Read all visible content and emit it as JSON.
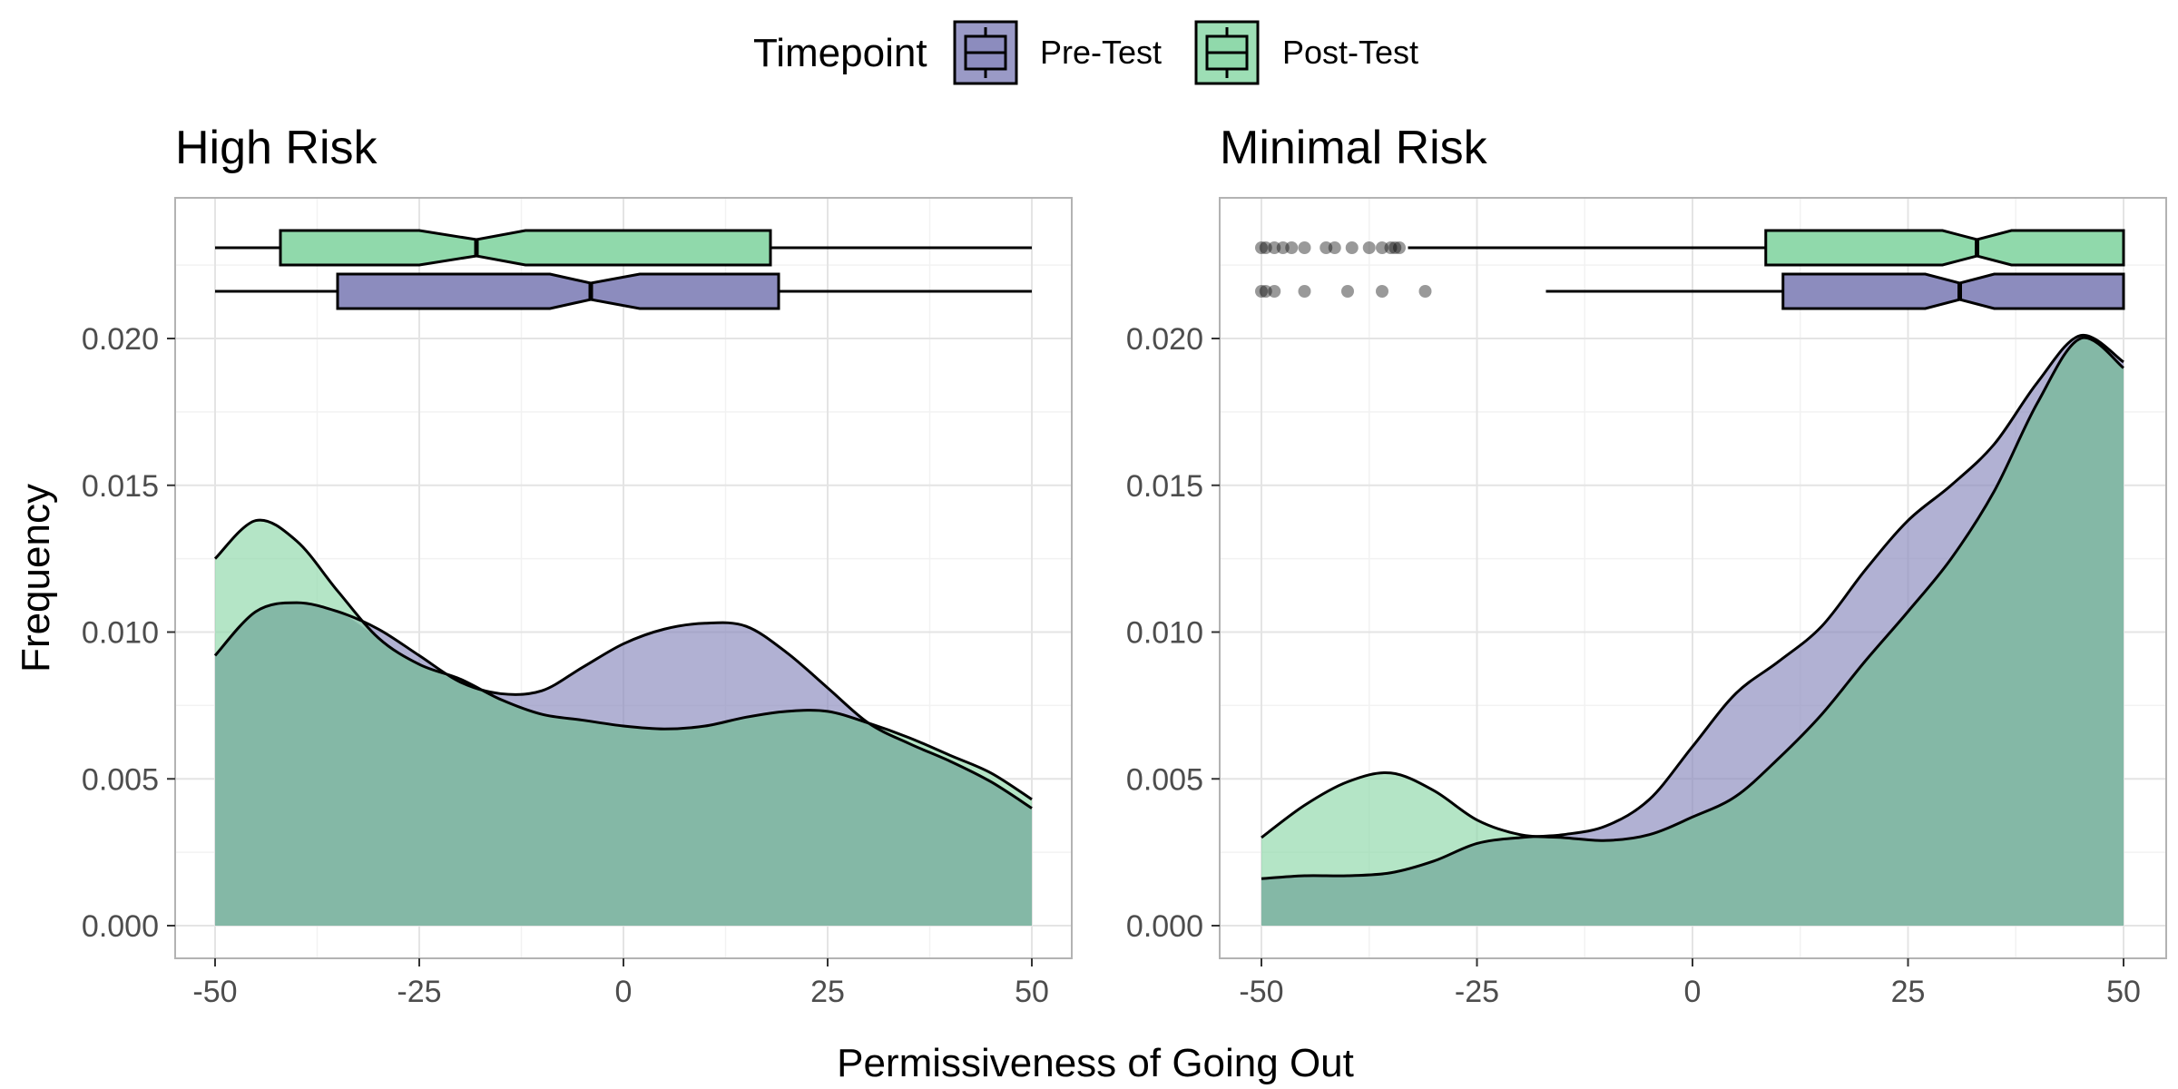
{
  "legend": {
    "title": "Timepoint",
    "items": [
      {
        "label": "Pre-Test",
        "color": "#8C8CBE"
      },
      {
        "label": "Post-Test",
        "color": "#90D9AB"
      }
    ]
  },
  "chart_data": {
    "type": "area",
    "xlabel": "Permissiveness of Going Out",
    "ylabel": "Frequency",
    "xlim": [
      -50,
      50
    ],
    "ylim": [
      0,
      0.02
    ],
    "x_ticks": [
      "-50",
      "-25",
      "0",
      "25",
      "50"
    ],
    "y_ticks": [
      "0.000",
      "0.005",
      "0.010",
      "0.015",
      "0.020"
    ],
    "grid": true,
    "legend_position": "top",
    "colors": {
      "Pre-Test": "#8C8CBE",
      "Post-Test": "#90D9AB",
      "overlap": "#84B8A6",
      "outline": "#000000"
    },
    "panels": [
      {
        "title": "High Risk",
        "x": [
          -50,
          -45,
          -40,
          -35,
          -30,
          -25,
          -20,
          -15,
          -10,
          -5,
          0,
          5,
          10,
          15,
          20,
          25,
          30,
          35,
          40,
          45,
          50
        ],
        "series": [
          {
            "name": "Pre-Test",
            "values": [
              0.0092,
              0.0107,
              0.011,
              0.0107,
              0.0101,
              0.0092,
              0.0083,
              0.0079,
              0.008,
              0.0088,
              0.0096,
              0.0101,
              0.0103,
              0.0102,
              0.0093,
              0.0081,
              0.0069,
              0.0062,
              0.0056,
              0.0049,
              0.004
            ]
          },
          {
            "name": "Post-Test",
            "values": [
              0.0125,
              0.0138,
              0.0131,
              0.0114,
              0.0098,
              0.0089,
              0.0084,
              0.0077,
              0.0072,
              0.007,
              0.0068,
              0.0067,
              0.0068,
              0.0071,
              0.0073,
              0.0073,
              0.0069,
              0.0064,
              0.0058,
              0.0052,
              0.0043
            ]
          }
        ],
        "boxplots": [
          {
            "name": "Pre-Test",
            "whisker_low": -50,
            "q1": -35,
            "median": -4,
            "q3": 19,
            "whisker_high": 50,
            "notch_low": -9,
            "notch_high": 2,
            "outliers": []
          },
          {
            "name": "Post-Test",
            "whisker_low": -50,
            "q1": -42,
            "median": -18,
            "q3": 18,
            "whisker_high": 50,
            "notch_low": -25,
            "notch_high": -12,
            "outliers": []
          }
        ]
      },
      {
        "title": "Minimal Risk",
        "x": [
          -50,
          -45,
          -40,
          -35,
          -30,
          -25,
          -20,
          -15,
          -10,
          -5,
          0,
          5,
          10,
          15,
          20,
          25,
          30,
          35,
          40,
          45,
          50
        ],
        "series": [
          {
            "name": "Pre-Test",
            "values": [
              0.0016,
              0.0017,
              0.0017,
              0.0018,
              0.0022,
              0.0028,
              0.003,
              0.0031,
              0.0034,
              0.0043,
              0.0061,
              0.0079,
              0.009,
              0.0102,
              0.0121,
              0.0138,
              0.015,
              0.0164,
              0.0185,
              0.0201,
              0.0192
            ]
          },
          {
            "name": "Post-Test",
            "values": [
              0.003,
              0.0041,
              0.0049,
              0.0052,
              0.0046,
              0.0036,
              0.0031,
              0.003,
              0.0029,
              0.0031,
              0.0037,
              0.0044,
              0.0057,
              0.0072,
              0.009,
              0.0107,
              0.0125,
              0.0148,
              0.0178,
              0.02,
              0.019
            ]
          }
        ],
        "boxplots": [
          {
            "name": "Pre-Test",
            "whisker_low": -17,
            "q1": 10.5,
            "median": 31,
            "q3": 50,
            "whisker_high": 50,
            "notch_low": 27,
            "notch_high": 35,
            "outliers": [
              -50,
              -49.5,
              -48.5,
              -45,
              -40,
              -36,
              -31
            ]
          },
          {
            "name": "Post-Test",
            "whisker_low": -33,
            "q1": 8.5,
            "median": 33,
            "q3": 50,
            "whisker_high": 50,
            "notch_low": 29,
            "notch_high": 37,
            "outliers": [
              -50,
              -49.5,
              -48.5,
              -47.5,
              -46.5,
              -45,
              -42.5,
              -41.5,
              -39.5,
              -37.5,
              -36,
              -35,
              -34.5,
              -34
            ]
          }
        ]
      }
    ]
  }
}
